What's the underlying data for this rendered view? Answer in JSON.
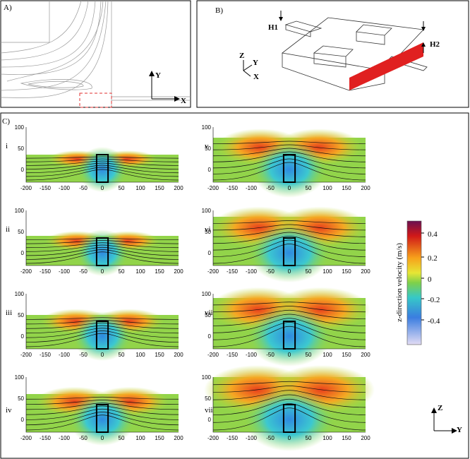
{
  "panel_a": {
    "label": "A)",
    "axes": [
      "Y",
      "X"
    ]
  },
  "panel_b": {
    "label": "B)",
    "dims": [
      "H1",
      "H2"
    ],
    "axes": [
      "Z",
      "Y",
      "X"
    ]
  },
  "panel_c": {
    "label": "C)",
    "subplots": [
      {
        "label": "i"
      },
      {
        "label": "ii"
      },
      {
        "label": "iii"
      },
      {
        "label": "iv"
      },
      {
        "label": "v"
      },
      {
        "label": "vi"
      },
      {
        "label": "vii"
      },
      {
        "label": "viii"
      }
    ],
    "xticks": [
      "-200",
      "-150",
      "-100",
      "-50",
      "0",
      "50",
      "100",
      "150",
      "200"
    ],
    "yticks": [
      "0",
      "50",
      "100"
    ],
    "colorbar": {
      "title": "z-direction velocity (m/s)",
      "ticks": [
        "0.4",
        "0.2",
        "0",
        "-0.2",
        "-0.4"
      ]
    },
    "axes": [
      "Z",
      "Y"
    ]
  }
}
